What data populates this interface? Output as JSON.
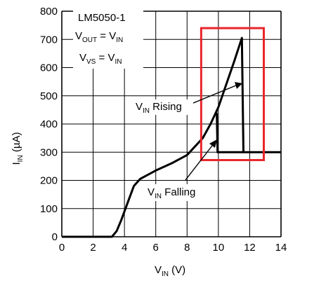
{
  "chart_data": {
    "type": "line",
    "xlim": [
      0,
      14
    ],
    "ylim": [
      0,
      800
    ],
    "x_ticks": [
      0,
      2,
      4,
      6,
      8,
      10,
      12,
      14
    ],
    "y_ticks": [
      0,
      100,
      200,
      300,
      400,
      500,
      600,
      700,
      800
    ],
    "grid": true,
    "xlabel": {
      "main": "V",
      "sub": "IN",
      "rest": " (V)"
    },
    "ylabel": {
      "main": "I",
      "sub": "IN",
      "rest": " (µA)"
    },
    "annotation_box": {
      "device": "LM5050-1",
      "line2": {
        "a": "V",
        "a_sub": "OUT",
        "eq": " = V",
        "b_sub": "IN"
      },
      "line3": {
        "a": "V",
        "a_sub": "VS",
        "eq": " = V",
        "b_sub": "IN"
      }
    },
    "labels": {
      "rising": {
        "main": "V",
        "sub": "IN",
        "rest": " Rising"
      },
      "falling": {
        "main": "V",
        "sub": "IN",
        "rest": " Falling"
      }
    },
    "highlight_box": {
      "x_range": [
        8.9,
        12.9
      ],
      "y_range": [
        272,
        740
      ],
      "color": "#e8262b"
    },
    "series": [
      {
        "x": [
          0,
          3.2,
          3.5,
          3.8,
          4.2,
          4.6,
          5.0,
          5.5,
          6.0,
          7.0,
          8.0,
          9.0,
          9.5,
          10.0,
          10.5,
          11.0,
          11.5,
          11.6,
          14.0
        ],
        "y": [
          0,
          0,
          20,
          60,
          120,
          180,
          205,
          220,
          235,
          260,
          290,
          350,
          400,
          460,
          540,
          620,
          705,
          300,
          300
        ]
      },
      {
        "x": [
          9.9,
          9.95,
          10.0,
          11.6
        ],
        "y": [
          440,
          300,
          300,
          300
        ]
      }
    ]
  }
}
